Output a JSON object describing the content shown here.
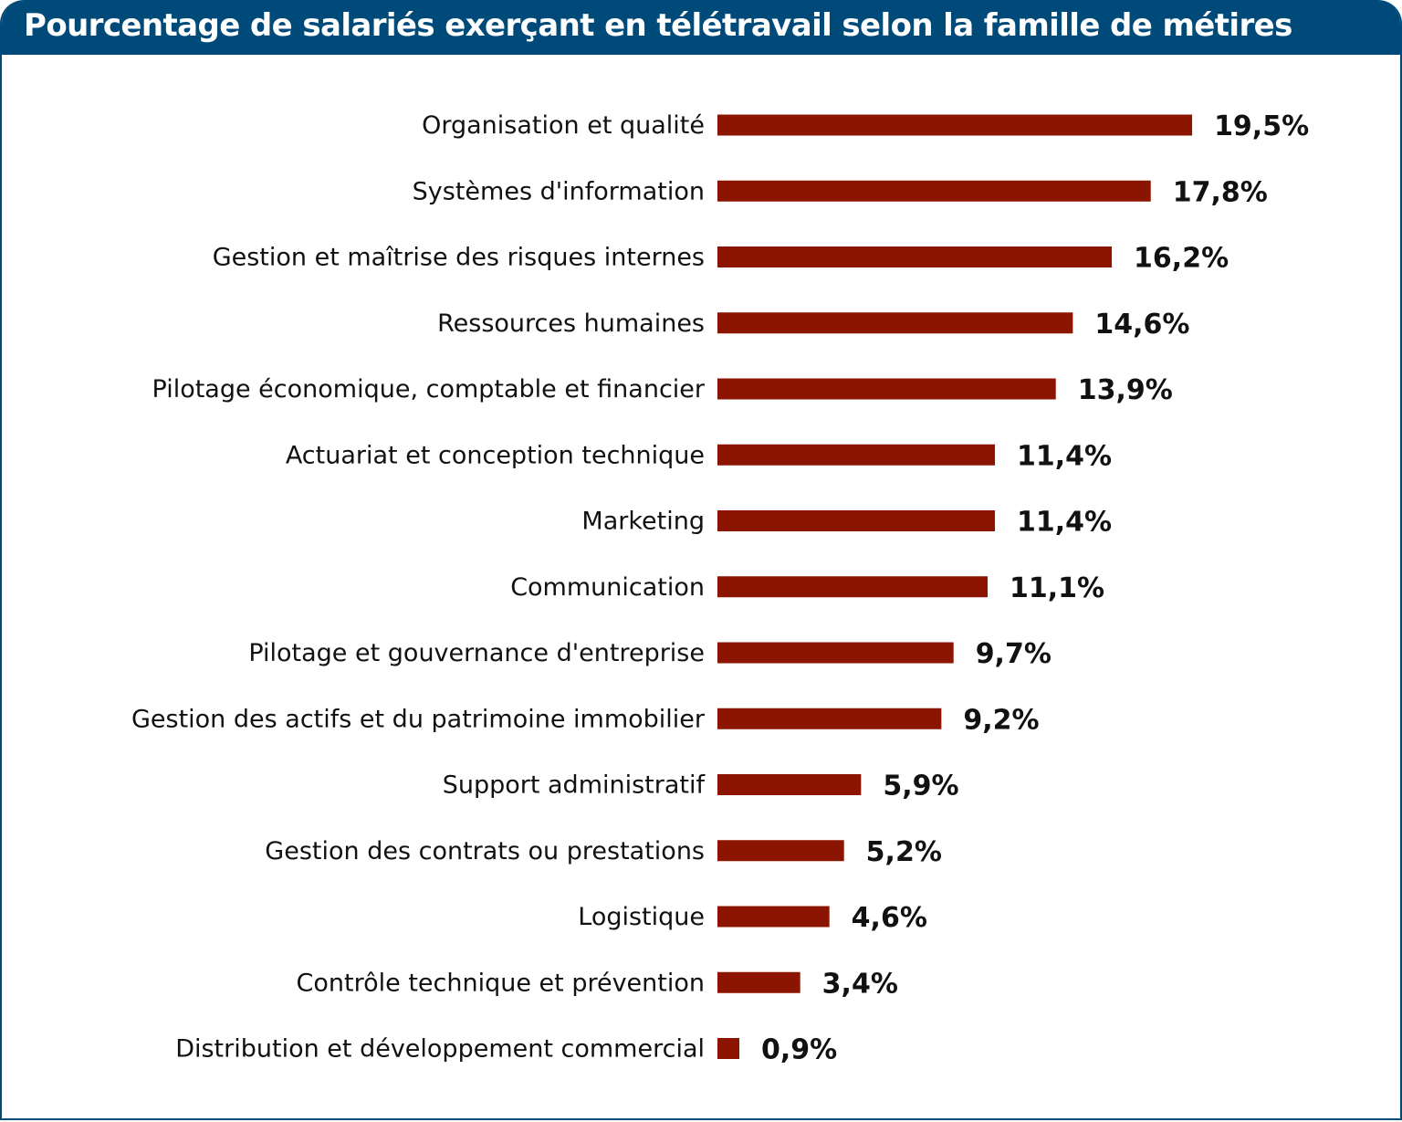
{
  "chart_data": {
    "type": "bar",
    "orientation": "horizontal",
    "title": "Pourcentage de salariés exerçant en télétravail selon la famille de métires",
    "categories": [
      "Organisation et qualité",
      "Systèmes d'information",
      "Gestion et maîtrise des risques internes",
      "Ressources humaines",
      "Pilotage économique, comptable et financier",
      "Actuariat et conception technique",
      "Marketing",
      "Communication",
      "Pilotage et gouvernance d'entreprise",
      "Gestion des actifs et du patrimoine immobilier",
      "Support administratif",
      "Gestion des contrats ou prestations",
      "Logistique",
      "Contrôle technique et prévention",
      "Distribution et développement commercial"
    ],
    "values": [
      19.5,
      17.8,
      16.2,
      14.6,
      13.9,
      11.4,
      11.4,
      11.1,
      9.7,
      9.2,
      5.9,
      5.2,
      4.6,
      3.4,
      0.9
    ],
    "value_labels": [
      "19,5%",
      "17,8%",
      "16,2%",
      "14,6%",
      "13,9%",
      "11,4%",
      "11,4%",
      "11,1%",
      "9,7%",
      "9,2%",
      "5,9%",
      "5,2%",
      "4,6%",
      "3,4%",
      "0,9%"
    ],
    "bar_color": "#8b1500",
    "header_color": "#004a7a",
    "grid": false,
    "axes_visible": false
  }
}
